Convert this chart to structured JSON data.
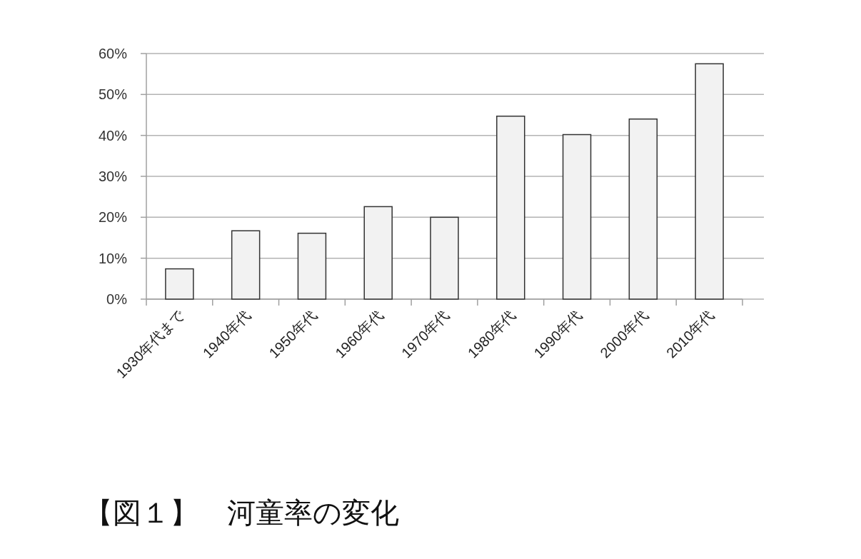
{
  "chart_data": {
    "type": "bar",
    "title": "【図１】　河童率の変化",
    "categories": [
      "1930年代まで",
      "1940年代",
      "1950年代",
      "1960年代",
      "1970年代",
      "1980年代",
      "1990年代",
      "2000年代",
      "2010年代"
    ],
    "values": [
      7.4,
      16.7,
      16.1,
      22.6,
      20.0,
      44.7,
      40.2,
      44.0,
      57.5
    ],
    "color": "#f2f2f2",
    "ylim": [
      0,
      60
    ],
    "yticks": [
      {
        "value": 0,
        "label": "0%"
      },
      {
        "value": 10,
        "label": "10%"
      },
      {
        "value": 20,
        "label": "20%"
      },
      {
        "value": 30,
        "label": "30%"
      },
      {
        "value": 40,
        "label": "40%"
      },
      {
        "value": 50,
        "label": "50%"
      },
      {
        "value": 60,
        "label": "60%"
      }
    ],
    "grid": "y"
  }
}
